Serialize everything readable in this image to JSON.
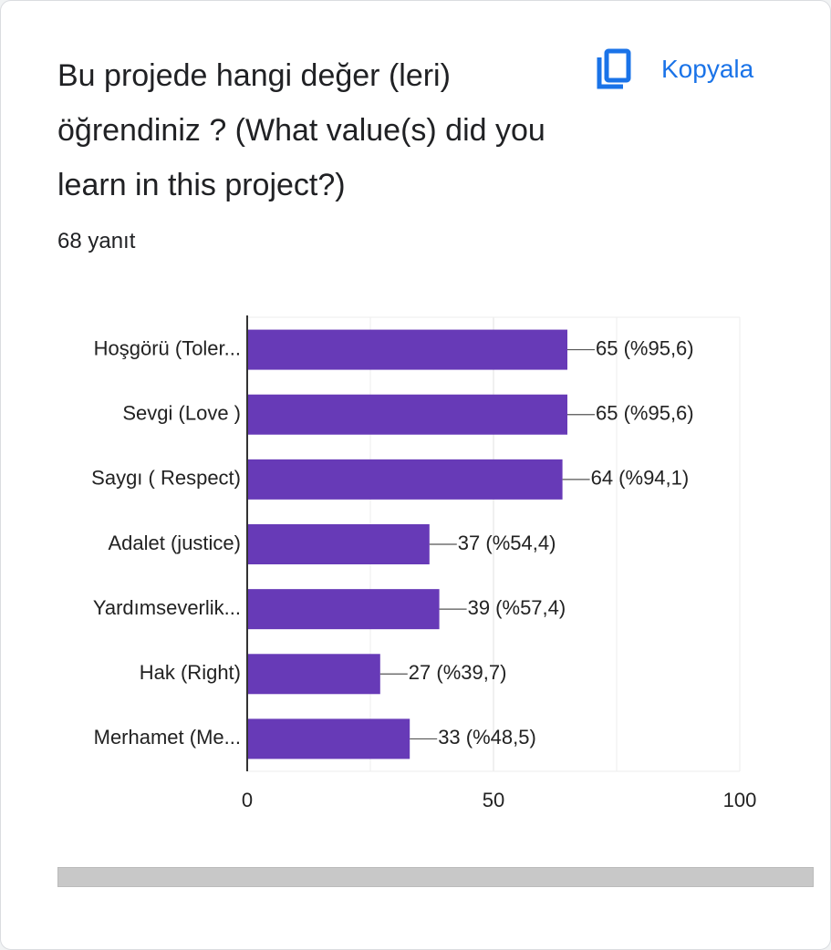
{
  "chart_data": {
    "type": "bar",
    "orientation": "horizontal",
    "title": "Bu projede hangi değer (leri) öğrendiniz ? (What value(s) did you learn in this project?)",
    "subtitle": "68 yanıt",
    "button": "Kopyala",
    "categories": [
      "Hoşgörü (Toler...",
      "Sevgi (Love )",
      "Saygı ( Respect)",
      "Adalet (justice)",
      "Yardımseverlik...",
      "Hak (Right)",
      "Merhamet (Me..."
    ],
    "values": [
      65,
      65,
      64,
      37,
      39,
      27,
      33
    ],
    "value_labels": [
      "65 (%95,6)",
      "65 (%95,6)",
      "64 (%94,1)",
      "37 (%54,4)",
      "39 (%57,4)",
      "27 (%39,7)",
      "33 (%48,5)"
    ],
    "color": "#673ab7",
    "xlim": [
      0,
      100
    ],
    "xticks": [
      0,
      50,
      100
    ],
    "minor_xticks": [
      25,
      75
    ],
    "grid": true
  }
}
